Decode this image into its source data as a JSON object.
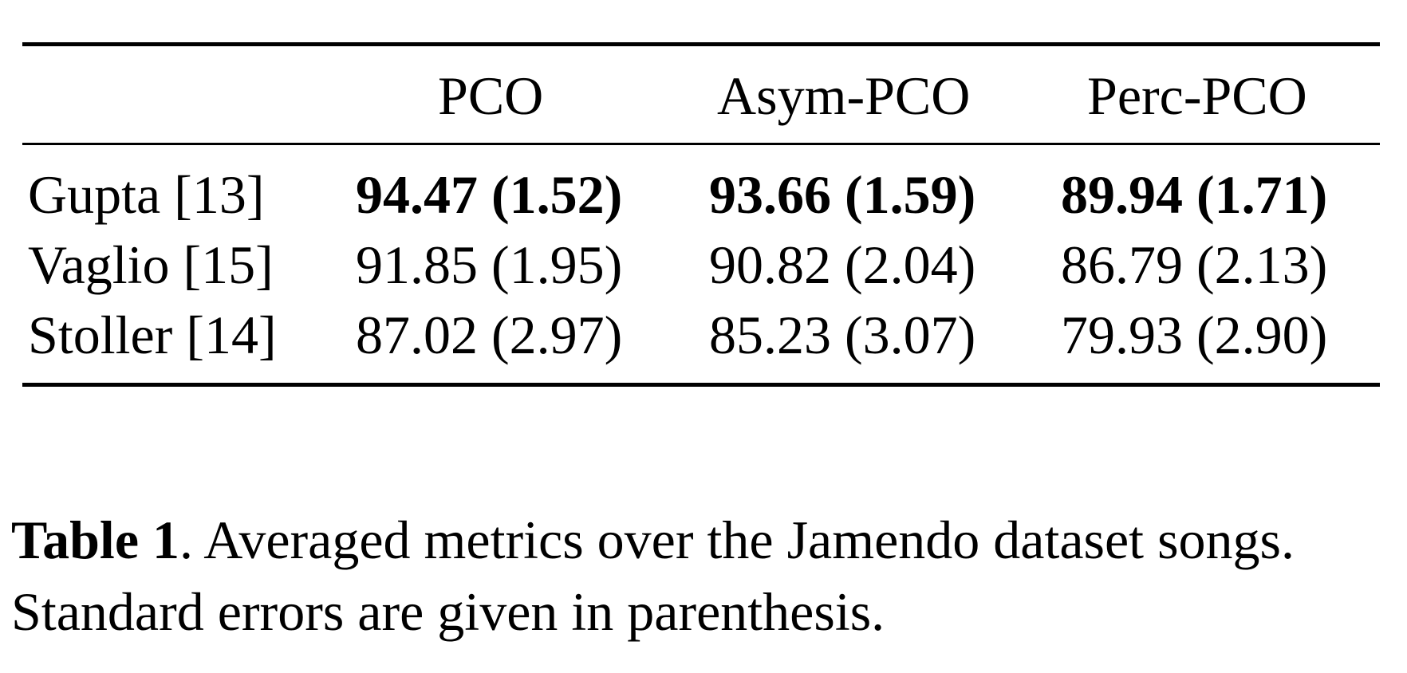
{
  "table": {
    "columns": [
      "PCO",
      "Asym-PCO",
      "Perc-PCO"
    ],
    "rows": [
      {
        "label": "Gupta [13]",
        "cells": [
          "94.47 (1.52)",
          "93.66 (1.59)",
          "89.94 (1.71)"
        ],
        "bold": true
      },
      {
        "label": "Vaglio [15]",
        "cells": [
          "91.85 (1.95)",
          "90.82 (2.04)",
          "86.79 (2.13)"
        ],
        "bold": false
      },
      {
        "label": "Stoller [14]",
        "cells": [
          "87.02 (2.97)",
          "85.23 (3.07)",
          "79.93 (2.90)"
        ],
        "bold": false
      }
    ]
  },
  "caption": {
    "label": "Table 1",
    "separator": ". ",
    "text": "Averaged metrics over the Jamendo dataset songs. Standard errors are given in parenthesis."
  }
}
